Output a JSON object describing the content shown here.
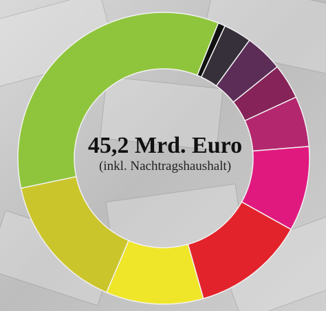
{
  "chart_data": {
    "type": "donut",
    "title": "45,2 Mrd. Euro",
    "subtitle": "(inkl. Nachtragshaushalt)",
    "categories": [
      null,
      null,
      null,
      null,
      null,
      null,
      null,
      null,
      null,
      null
    ],
    "values": [
      0.8,
      3.1,
      4.2,
      3.9,
      5.6,
      9.4,
      12.5,
      10.8,
      15.3,
      34.4
    ],
    "colors": [
      "#111111",
      "#35303a",
      "#5b2d57",
      "#862359",
      "#b3276e",
      "#e0197f",
      "#e3232b",
      "#efe62a",
      "#cbc52c",
      "#8fc53c"
    ]
  }
}
